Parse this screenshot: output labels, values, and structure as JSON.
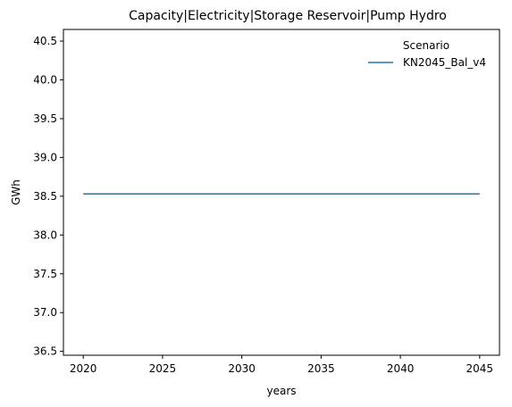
{
  "chart_data": {
    "type": "line",
    "title": "Capacity|Electricity|Storage Reservoir|Pump Hydro",
    "xlabel": "years",
    "ylabel": "GWh",
    "xlim": [
      2018.75,
      2046.25
    ],
    "ylim": [
      36.45,
      40.65
    ],
    "xticks": [
      2020,
      2025,
      2030,
      2035,
      2040,
      2045
    ],
    "yticks": [
      36.5,
      37.0,
      37.5,
      38.0,
      38.5,
      39.0,
      39.5,
      40.0,
      40.5
    ],
    "x": [
      2020,
      2025,
      2030,
      2035,
      2040,
      2045
    ],
    "series": [
      {
        "name": "KN2045_Bal_v4",
        "values": [
          38.53,
          38.53,
          38.53,
          38.53,
          38.53,
          38.53
        ],
        "color": "#1f77b4"
      }
    ],
    "legend": {
      "title": "Scenario",
      "position": "top-right"
    },
    "grid": false
  }
}
